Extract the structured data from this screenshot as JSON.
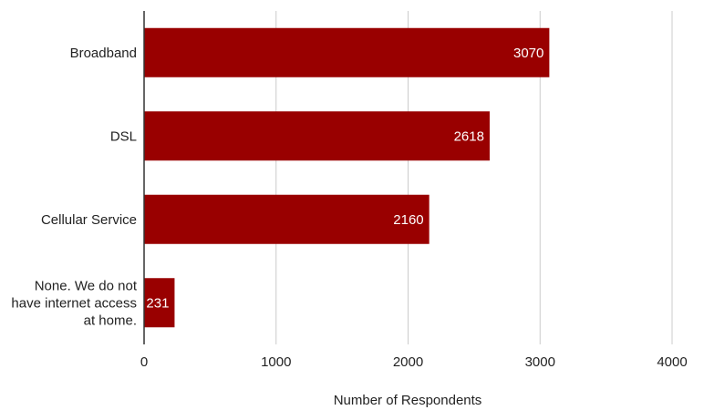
{
  "chart_data": {
    "type": "bar",
    "orientation": "horizontal",
    "categories": [
      "Broadband",
      "DSL",
      "Cellular Service",
      "None. We do not have internet access at home."
    ],
    "category_label_lines": [
      [
        "Broadband"
      ],
      [
        "DSL"
      ],
      [
        "Cellular Service"
      ],
      [
        "None. We do not",
        "have internet access",
        "at home."
      ]
    ],
    "values": [
      3070,
      2618,
      2160,
      231
    ],
    "data_labels": [
      "3070",
      "2618",
      "2160",
      "231"
    ],
    "title": "",
    "xlabel": "Number of Respondents",
    "ylabel": "",
    "xlim": [
      0,
      4000
    ],
    "x_ticks": [
      0,
      1000,
      2000,
      3000,
      4000
    ],
    "x_tick_labels": [
      "0",
      "1000",
      "2000",
      "3000",
      "4000"
    ],
    "grid": "vertical",
    "legend": "none",
    "colors": {
      "bar": "#990000",
      "grid": "#cccccc",
      "axis": "#333333",
      "data_label": "#ffffff"
    }
  }
}
